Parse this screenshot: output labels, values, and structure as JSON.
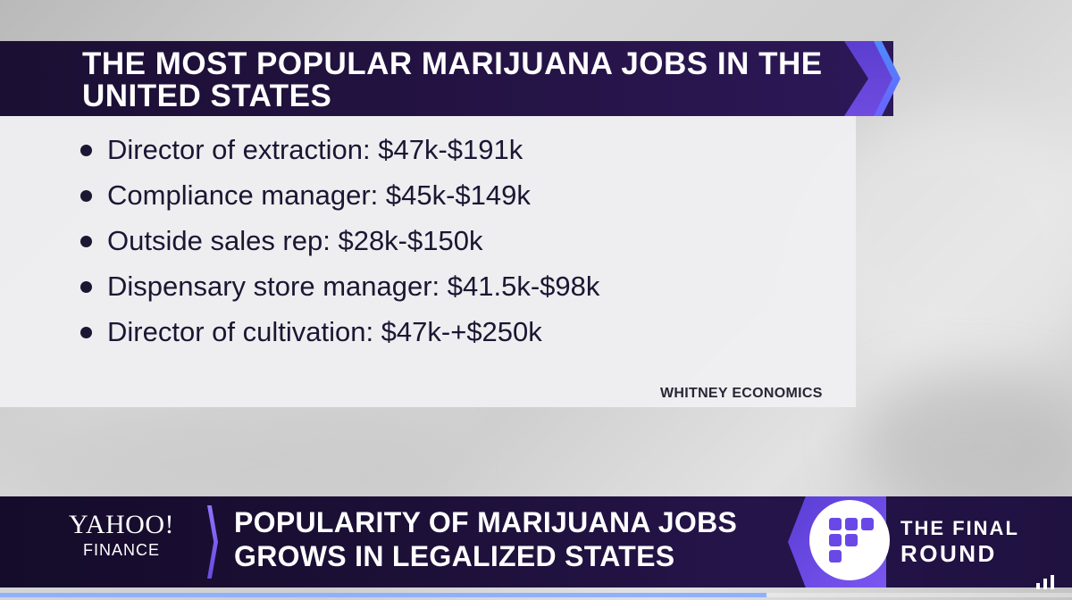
{
  "title": {
    "line1": "THE MOST POPULAR MARIJUANA JOBS IN THE",
    "line2": "UNITED STATES"
  },
  "jobs": [
    {
      "label": "Director of extraction: $47k-$191k"
    },
    {
      "label": "Compliance manager: $45k-$149k"
    },
    {
      "label": "Outside sales rep: $28k-$150k"
    },
    {
      "label": "Dispensary store manager: $41.5k-$98k"
    },
    {
      "label": "Director of cultivation: $47k-+$250k"
    }
  ],
  "source": "WHITNEY ECONOMICS",
  "lower_third": {
    "brand_word": "YAHOO!",
    "brand_sub": "FINANCE",
    "headline_line1": "POPULARITY OF MARIJUANA JOBS",
    "headline_line2": "GROWS IN LEGALIZED STATES"
  },
  "show": {
    "line1": "THE FINAL",
    "line2": "ROUND",
    "icon": "final-round-logo-icon"
  },
  "player": {
    "progress": 0.715,
    "signal_icon": "signal-bars-icon"
  },
  "colors": {
    "banner": "#1b0f33",
    "accent_purple": "#6f4be0",
    "accent_blue": "#4d8bff",
    "text_dark": "#1c1633"
  }
}
